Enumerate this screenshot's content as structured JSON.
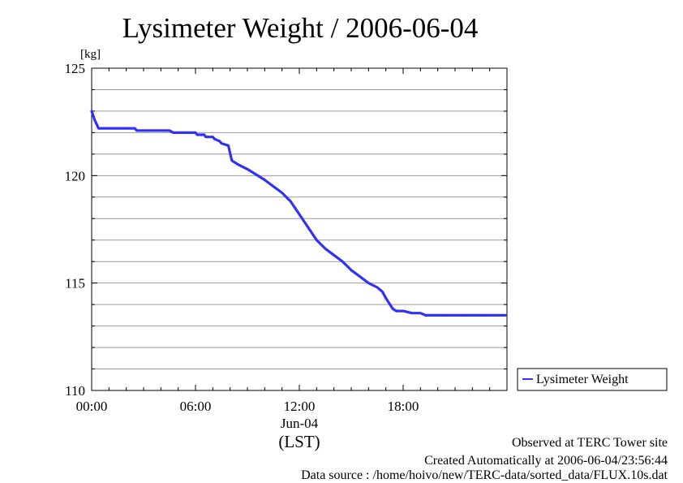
{
  "chart_data": {
    "type": "line",
    "title": "Lysimeter Weight / 2006-06-04",
    "ylabel": "[kg]",
    "xlabel": "(LST)",
    "date_label": "Jun-04",
    "ylim": [
      110,
      125
    ],
    "xlim": [
      0,
      24
    ],
    "x_unit": "hours (LST)",
    "y_ticks": [
      {
        "value": 110,
        "label": "110"
      },
      {
        "value": 115,
        "label": "115"
      },
      {
        "value": 120,
        "label": "120"
      },
      {
        "value": 125,
        "label": "125"
      }
    ],
    "x_ticks": [
      {
        "value": 0,
        "label": "00:00"
      },
      {
        "value": 6,
        "label": "06:00"
      },
      {
        "value": 12,
        "label": "12:00"
      },
      {
        "value": 18,
        "label": "18:00"
      }
    ],
    "grid": true,
    "legend_position": "outside-right",
    "series": [
      {
        "name": "Lysimeter Weight",
        "color": "#3333ff",
        "x": [
          0.0,
          0.17,
          0.4,
          1.0,
          2.0,
          2.5,
          2.6,
          3.5,
          4.5,
          4.7,
          5.5,
          6.0,
          6.1,
          6.5,
          6.6,
          7.0,
          7.1,
          7.4,
          7.5,
          7.9,
          8.1,
          8.3,
          8.5,
          9.0,
          9.5,
          10.0,
          10.5,
          11.0,
          11.5,
          12.0,
          12.5,
          13.0,
          13.5,
          14.0,
          14.5,
          15.0,
          15.5,
          16.0,
          16.5,
          16.8,
          17.0,
          17.4,
          17.6,
          18.0,
          18.5,
          19.0,
          19.3,
          20.0,
          21.0,
          22.0,
          23.0,
          23.9
        ],
        "y": [
          123.0,
          122.6,
          122.2,
          122.2,
          122.2,
          122.2,
          122.1,
          122.1,
          122.1,
          122.0,
          122.0,
          122.0,
          121.9,
          121.9,
          121.8,
          121.8,
          121.7,
          121.6,
          121.5,
          121.4,
          120.7,
          120.6,
          120.5,
          120.3,
          120.05,
          119.8,
          119.5,
          119.2,
          118.8,
          118.2,
          117.6,
          117.0,
          116.6,
          116.3,
          116.0,
          115.6,
          115.3,
          115.0,
          114.8,
          114.6,
          114.3,
          113.8,
          113.7,
          113.7,
          113.6,
          113.6,
          113.5,
          113.5,
          113.5,
          113.5,
          113.5,
          113.5
        ]
      }
    ],
    "annotations": [
      "Observed at TERC Tower site",
      "Created Automatically at 2006-06-04/23:56:44",
      "Data source : /home/hoivo/new/TERC-data/sorted_data/FLUX.10s.dat"
    ]
  }
}
